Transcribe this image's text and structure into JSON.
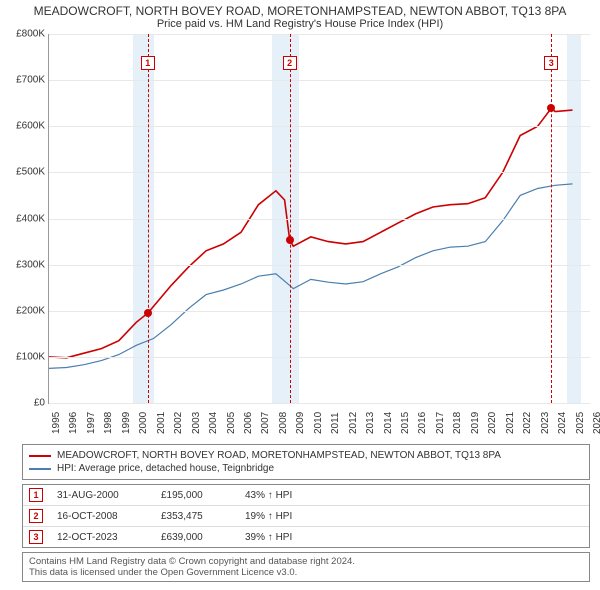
{
  "title": "MEADOWCROFT, NORTH BOVEY ROAD, MORETONHAMPSTEAD, NEWTON ABBOT, TQ13 8PA",
  "subtitle": "Price paid vs. HM Land Registry's House Price Index (HPI)",
  "chart": {
    "type": "line",
    "ylim": [
      0,
      800000
    ],
    "ytick_step": 100000,
    "y_ticks": [
      "£0",
      "£100K",
      "£200K",
      "£300K",
      "£400K",
      "£500K",
      "£600K",
      "£700K",
      "£800K"
    ],
    "xlim": [
      1995,
      2026
    ],
    "x_ticks": [
      1995,
      1996,
      1997,
      1998,
      1999,
      2000,
      2001,
      2002,
      2003,
      2004,
      2005,
      2006,
      2007,
      2008,
      2009,
      2010,
      2011,
      2012,
      2013,
      2014,
      2015,
      2016,
      2017,
      2018,
      2019,
      2020,
      2021,
      2022,
      2023,
      2024,
      2025,
      2026
    ],
    "background_color": "#ffffff",
    "grid_color": "#e8e8e8",
    "band_color": "#dbe9f6",
    "bands": [
      {
        "from": 1999.8,
        "to": 2001.0
      },
      {
        "from": 2007.8,
        "to": 2009.3
      },
      {
        "from": 2024.7,
        "to": 2025.5
      }
    ],
    "vlines": [
      {
        "x": 2000.66,
        "color": "#cc0000"
      },
      {
        "x": 2008.79,
        "color": "#cc0000"
      },
      {
        "x": 2023.78,
        "color": "#cc0000"
      }
    ],
    "series": [
      {
        "name": "subject",
        "label": "MEADOWCROFT, NORTH BOVEY ROAD, MORETONHAMPSTEAD, NEWTON ABBOT, TQ13 8PA",
        "color": "#cc0000",
        "line_width": 1.6,
        "points": [
          [
            1995,
            100000
          ],
          [
            1996,
            98000
          ],
          [
            1997,
            108000
          ],
          [
            1998,
            118000
          ],
          [
            1999,
            135000
          ],
          [
            2000,
            175000
          ],
          [
            2000.66,
            195000
          ],
          [
            2001,
            210000
          ],
          [
            2002,
            255000
          ],
          [
            2003,
            295000
          ],
          [
            2004,
            330000
          ],
          [
            2005,
            345000
          ],
          [
            2006,
            370000
          ],
          [
            2007,
            430000
          ],
          [
            2008,
            460000
          ],
          [
            2008.5,
            440000
          ],
          [
            2008.79,
            353475
          ],
          [
            2009,
            340000
          ],
          [
            2010,
            360000
          ],
          [
            2011,
            350000
          ],
          [
            2012,
            345000
          ],
          [
            2013,
            350000
          ],
          [
            2014,
            370000
          ],
          [
            2015,
            390000
          ],
          [
            2016,
            410000
          ],
          [
            2017,
            425000
          ],
          [
            2018,
            430000
          ],
          [
            2019,
            432000
          ],
          [
            2020,
            445000
          ],
          [
            2021,
            500000
          ],
          [
            2022,
            580000
          ],
          [
            2023,
            600000
          ],
          [
            2023.78,
            639000
          ],
          [
            2024,
            632000
          ],
          [
            2025,
            635000
          ]
        ]
      },
      {
        "name": "hpi",
        "label": "HPI: Average price, detached house, Teignbridge",
        "color": "#4a7fb0",
        "line_width": 1.2,
        "points": [
          [
            1995,
            75000
          ],
          [
            1996,
            77000
          ],
          [
            1997,
            83000
          ],
          [
            1998,
            92000
          ],
          [
            1999,
            105000
          ],
          [
            2000,
            125000
          ],
          [
            2001,
            140000
          ],
          [
            2002,
            170000
          ],
          [
            2003,
            205000
          ],
          [
            2004,
            235000
          ],
          [
            2005,
            245000
          ],
          [
            2006,
            258000
          ],
          [
            2007,
            275000
          ],
          [
            2008,
            280000
          ],
          [
            2008.79,
            255000
          ],
          [
            2009,
            248000
          ],
          [
            2010,
            268000
          ],
          [
            2011,
            262000
          ],
          [
            2012,
            258000
          ],
          [
            2013,
            263000
          ],
          [
            2014,
            280000
          ],
          [
            2015,
            295000
          ],
          [
            2016,
            315000
          ],
          [
            2017,
            330000
          ],
          [
            2018,
            338000
          ],
          [
            2019,
            340000
          ],
          [
            2020,
            350000
          ],
          [
            2021,
            395000
          ],
          [
            2022,
            450000
          ],
          [
            2023,
            465000
          ],
          [
            2024,
            472000
          ],
          [
            2025,
            475000
          ]
        ]
      }
    ],
    "markers": [
      {
        "n": "1",
        "x": 2000.66,
        "y": 195000,
        "color": "#cc0000"
      },
      {
        "n": "2",
        "x": 2008.79,
        "y": 353475,
        "color": "#cc0000"
      },
      {
        "n": "3",
        "x": 2023.78,
        "y": 639000,
        "color": "#cc0000"
      }
    ]
  },
  "legend": {
    "rows": [
      {
        "color": "#cc0000",
        "label": "MEADOWCROFT, NORTH BOVEY ROAD, MORETONHAMPSTEAD, NEWTON ABBOT, TQ13 8PA"
      },
      {
        "color": "#4a7fb0",
        "label": "HPI: Average price, detached house, Teignbridge"
      }
    ]
  },
  "marker_table": [
    {
      "n": "1",
      "color": "#cc0000",
      "date": "31-AUG-2000",
      "price": "£195,000",
      "pct": "43% ↑ HPI"
    },
    {
      "n": "2",
      "color": "#cc0000",
      "date": "16-OCT-2008",
      "price": "£353,475",
      "pct": "19% ↑ HPI"
    },
    {
      "n": "3",
      "color": "#cc0000",
      "date": "12-OCT-2023",
      "price": "£639,000",
      "pct": "39% ↑ HPI"
    }
  ],
  "footer": {
    "line1": "Contains HM Land Registry data © Crown copyright and database right 2024.",
    "line2": "This data is licensed under the Open Government Licence v3.0."
  }
}
